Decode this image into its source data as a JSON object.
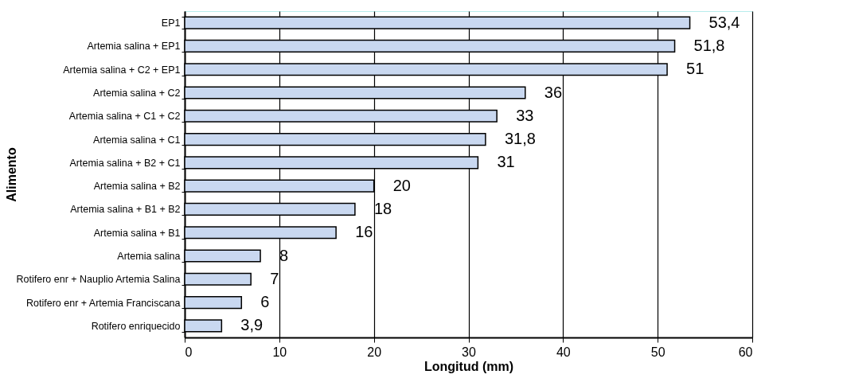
{
  "chart_data": {
    "type": "bar",
    "orientation": "horizontal",
    "xlabel": "Longitud (mm)",
    "ylabel": "Alimento",
    "categories": [
      "EP1",
      "Artemia salina + EP1",
      "Artemia salina + C2 + EP1",
      "Artemia salina + C2",
      "Artemia salina + C1  + C2",
      "Artemia salina + C1",
      "Artemia salina + B2 + C1",
      "Artemia salina + B2",
      "Artemia salina +  B1 + B2",
      "Artemia salina +  B1",
      "Artemia salina",
      "Rotifero enr + Nauplio Artemia Salina",
      "Rotifero enr + Artemia Franciscana",
      "Rotifero enriquecido"
    ],
    "values": [
      53.4,
      51.8,
      51,
      36,
      33,
      31.8,
      31,
      20,
      18,
      16,
      8,
      7,
      6,
      3.9
    ],
    "value_labels": [
      "53,4",
      "51,8",
      "51",
      "36",
      "33",
      "31,8",
      "31",
      "20",
      "18",
      "16",
      "8",
      "7",
      "6",
      "3,9"
    ],
    "color": "#c9d8f0",
    "xlim": [
      0,
      60
    ],
    "xticks": [
      0,
      10,
      20,
      30,
      40,
      50,
      60
    ],
    "grid": "x"
  }
}
